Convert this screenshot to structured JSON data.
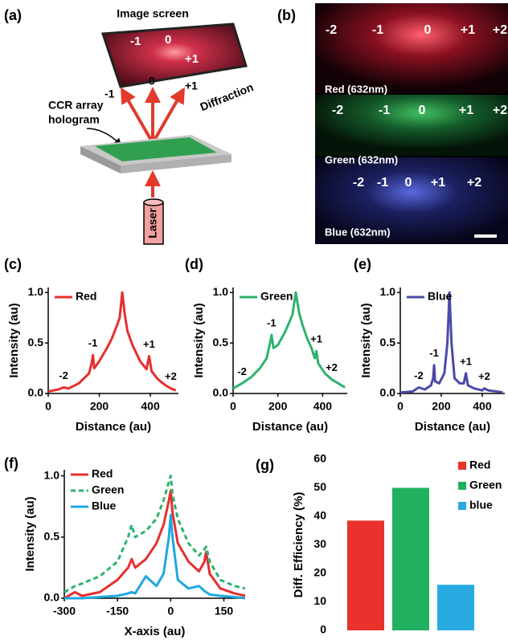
{
  "diagram": {
    "label": "(a)",
    "screen_title": "Image screen",
    "screen_orders": [
      "-1",
      "0",
      "+1"
    ],
    "beam_orders": [
      "-1",
      "0",
      "+1"
    ],
    "diffraction": "Diffraction",
    "hologram": [
      "CCR array",
      "hologram"
    ],
    "laser": "Laser"
  },
  "photo": {
    "label": "(b)",
    "rows": [
      {
        "orders": [
          "-2",
          "-1",
          "0",
          "+1",
          "+2"
        ],
        "caption": "Red (632nm)"
      },
      {
        "orders": [
          "-2",
          "-1",
          "0",
          "+1",
          "+2"
        ],
        "caption": "Green (632nm)"
      },
      {
        "orders": [
          "-2",
          "-1",
          "0",
          "+1",
          "+2"
        ],
        "caption": "Blue (632nm)"
      }
    ]
  },
  "chart_data": [
    {
      "type": "line",
      "panel_label": "(c)",
      "x_label": "Distance (au)",
      "y_label": "Intensity (au)",
      "xlim": [
        0,
        510
      ],
      "ylim": [
        0,
        1.05
      ],
      "xticks": [
        0,
        200,
        400
      ],
      "yticks": [
        {
          "value": 0,
          "label": "0.0"
        },
        0.5,
        {
          "value": 1,
          "label": "1.0"
        }
      ],
      "x": [
        0,
        40,
        60,
        80,
        120,
        160,
        170,
        175,
        180,
        200,
        230,
        250,
        270,
        280,
        290,
        300,
        310,
        330,
        360,
        385,
        395,
        405,
        430,
        460,
        480,
        500
      ],
      "series": [
        {
          "name": "Red",
          "color": "#e5302e",
          "values": [
            0.02,
            0.04,
            0.06,
            0.05,
            0.1,
            0.2,
            0.3,
            0.38,
            0.25,
            0.32,
            0.45,
            0.55,
            0.68,
            0.75,
            1.0,
            0.78,
            0.62,
            0.48,
            0.32,
            0.24,
            0.37,
            0.22,
            0.14,
            0.08,
            0.05,
            0.03
          ]
        }
      ],
      "annotations": [
        "-2",
        "-1",
        "+1",
        "+2"
      ]
    },
    {
      "type": "line",
      "panel_label": "(d)",
      "x_label": "Distance (au)",
      "y_label": "Intensity (au)",
      "xlim": [
        0,
        510
      ],
      "ylim": [
        0,
        1.05
      ],
      "xticks": [
        0,
        200,
        400
      ],
      "yticks": [
        {
          "value": 0,
          "label": "0.0"
        },
        0.5,
        {
          "value": 1,
          "label": "1.0"
        }
      ],
      "x": [
        0,
        40,
        80,
        120,
        150,
        165,
        172,
        180,
        200,
        230,
        250,
        265,
        280,
        295,
        310,
        330,
        350,
        365,
        372,
        380,
        410,
        440,
        470,
        500
      ],
      "series": [
        {
          "name": "Green",
          "color": "#2db36e",
          "values": [
            0.05,
            0.1,
            0.16,
            0.25,
            0.35,
            0.5,
            0.58,
            0.45,
            0.48,
            0.6,
            0.7,
            0.78,
            1.0,
            0.8,
            0.68,
            0.55,
            0.45,
            0.35,
            0.42,
            0.3,
            0.2,
            0.14,
            0.1,
            0.06
          ]
        }
      ],
      "annotations": [
        "-2",
        "-1",
        "+1",
        "+2"
      ]
    },
    {
      "type": "line",
      "panel_label": "(e)",
      "x_label": "Distance (au)",
      "y_label": "Intensity (au)",
      "xlim": [
        0,
        510
      ],
      "ylim": [
        0,
        1.05
      ],
      "xticks": [
        0,
        200,
        400
      ],
      "yticks": [
        {
          "value": 0,
          "label": "0.0"
        },
        0.5,
        {
          "value": 1,
          "label": "1.0"
        }
      ],
      "x": [
        0,
        60,
        90,
        120,
        150,
        160,
        165,
        170,
        190,
        215,
        230,
        240,
        250,
        265,
        290,
        310,
        320,
        330,
        360,
        400,
        410,
        430,
        470,
        500
      ],
      "series": [
        {
          "name": "Blue",
          "color": "#4a4aa8",
          "values": [
            0.01,
            0.02,
            0.06,
            0.04,
            0.08,
            0.15,
            0.28,
            0.12,
            0.1,
            0.2,
            0.5,
            1.0,
            0.5,
            0.15,
            0.1,
            0.1,
            0.2,
            0.08,
            0.05,
            0.03,
            0.05,
            0.03,
            0.02,
            0.01
          ]
        }
      ],
      "annotations": [
        "-2",
        "-1",
        "+1",
        "+2"
      ]
    },
    {
      "type": "line",
      "panel_label": "(f)",
      "x_label": "X-axis (au)",
      "y_label": "Intensity (au)",
      "xlim": [
        -300,
        210
      ],
      "ylim": [
        0,
        1.05
      ],
      "xticks": [
        -300,
        -150,
        0,
        150
      ],
      "yticks": [
        {
          "value": 0,
          "label": "0.0"
        },
        0.5,
        {
          "value": 1,
          "label": "1.0"
        }
      ],
      "x": [
        -300,
        -270,
        -250,
        -200,
        -150,
        -120,
        -110,
        -100,
        -70,
        -40,
        -20,
        -5,
        0,
        5,
        20,
        50,
        80,
        95,
        100,
        110,
        140,
        180,
        210
      ],
      "series": [
        {
          "name": "Red",
          "color": "#e5302e",
          "values": [
            0,
            0.05,
            0.02,
            0.05,
            0.15,
            0.25,
            0.32,
            0.25,
            0.32,
            0.45,
            0.6,
            0.8,
            0.88,
            0.7,
            0.45,
            0.3,
            0.22,
            0.3,
            0.38,
            0.2,
            0.08,
            0.04,
            0.02
          ]
        },
        {
          "name": "Green",
          "color": "#2db36e",
          "dashed": true,
          "values": [
            0.05,
            0.1,
            0.12,
            0.18,
            0.3,
            0.5,
            0.6,
            0.5,
            0.55,
            0.65,
            0.8,
            0.95,
            1.0,
            0.85,
            0.65,
            0.45,
            0.35,
            0.4,
            0.42,
            0.3,
            0.15,
            0.1,
            0.08
          ]
        },
        {
          "name": "Blue",
          "color": "#1fa8e0",
          "values": [
            0,
            0,
            0,
            0.01,
            0.02,
            0.04,
            0.05,
            0.04,
            0.18,
            0.1,
            0.2,
            0.5,
            0.68,
            0.5,
            0.15,
            0.08,
            0.1,
            0.06,
            0.05,
            0.03,
            0.02,
            0.01,
            0
          ]
        }
      ]
    },
    {
      "type": "bar",
      "panel_label": "(g)",
      "y_label": "Diff. Efficiency (%)",
      "ylim": [
        0,
        60
      ],
      "yticks": [
        0,
        10,
        20,
        30,
        40,
        50,
        60
      ],
      "series": [
        {
          "name": "Red",
          "color": "#e8322b",
          "values": [
            38.5
          ]
        },
        {
          "name": "Green",
          "color": "#20b060",
          "values": [
            50
          ]
        },
        {
          "name": "blue",
          "color": "#29abe2",
          "values": [
            16
          ]
        }
      ]
    }
  ]
}
